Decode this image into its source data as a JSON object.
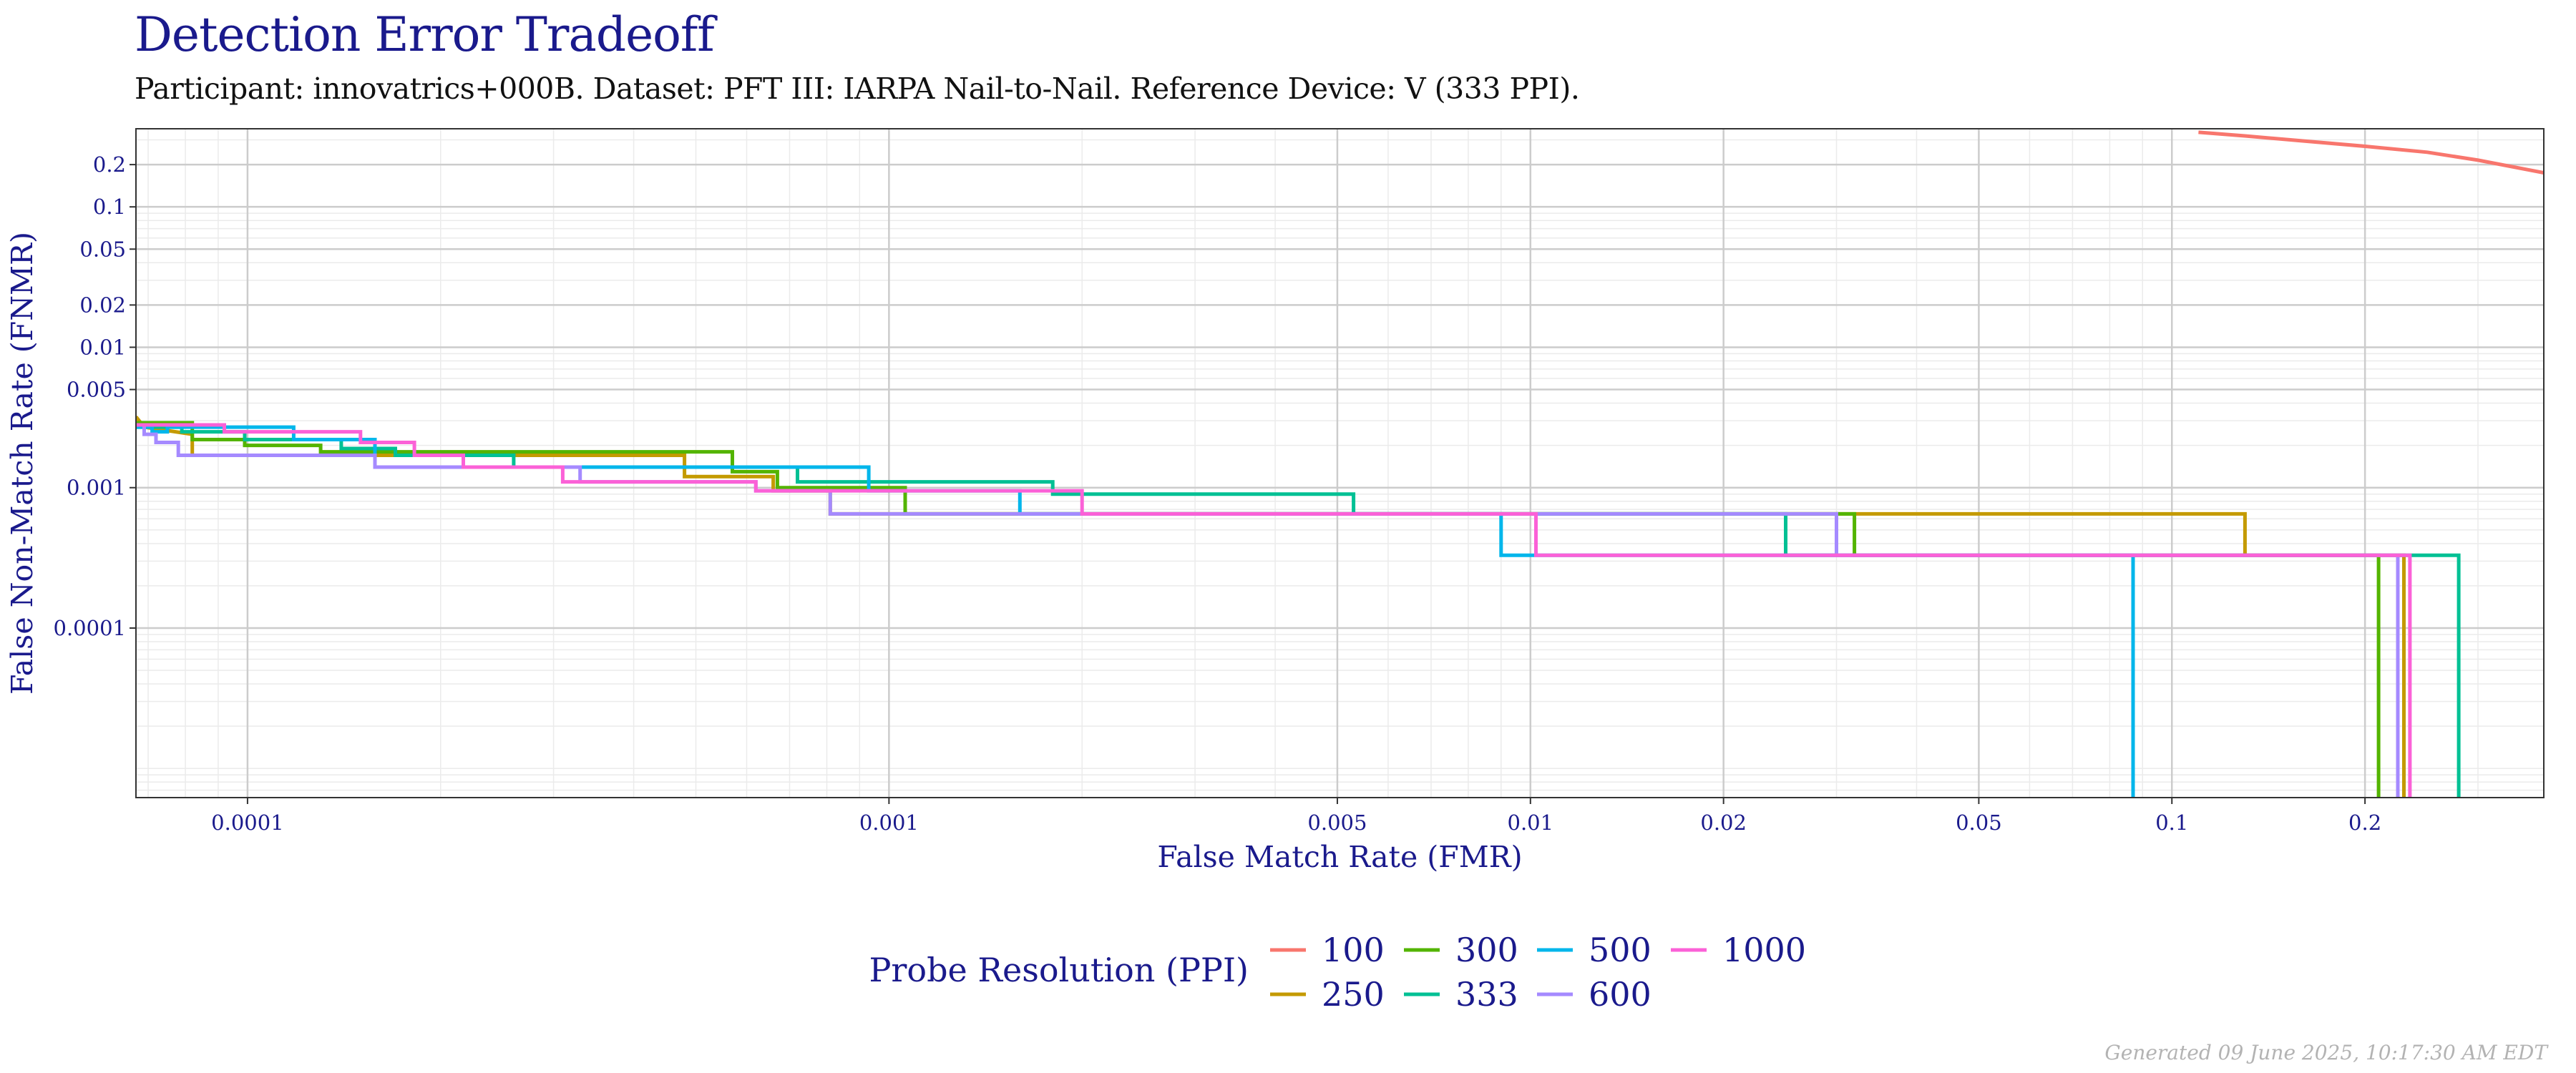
{
  "chart_data": {
    "type": "line",
    "step": true,
    "title": "Detection Error Tradeoff",
    "subtitle": "Participant: innovatrics+000B. Dataset: PFT III: IARPA Nail-to-Nail. Reference Device: V (333 PPI).",
    "xlabel": "False Match Rate (FMR)",
    "ylabel": "False Non-Match Rate (FNMR)",
    "xscale": "log",
    "yscale": "log",
    "xlim": [
      6.7e-05,
      0.38
    ],
    "ylim": [
      6.2e-06,
      0.36
    ],
    "xticks": [
      {
        "value": 0.0001,
        "label": "0.0001"
      },
      {
        "value": 0.001,
        "label": "0.001"
      },
      {
        "value": 0.005,
        "label": "0.005"
      },
      {
        "value": 0.01,
        "label": "0.01"
      },
      {
        "value": 0.02,
        "label": "0.02"
      },
      {
        "value": 0.05,
        "label": "0.05"
      },
      {
        "value": 0.1,
        "label": "0.1"
      },
      {
        "value": 0.2,
        "label": "0.2"
      }
    ],
    "yticks": [
      {
        "value": 0.2,
        "label": "0.2"
      },
      {
        "value": 0.1,
        "label": "0.1"
      },
      {
        "value": 0.05,
        "label": "0.05"
      },
      {
        "value": 0.02,
        "label": "0.02"
      },
      {
        "value": 0.01,
        "label": "0.01"
      },
      {
        "value": 0.005,
        "label": "0.005"
      },
      {
        "value": 0.001,
        "label": "0.001"
      },
      {
        "value": 0.0001,
        "label": "0.0001"
      }
    ],
    "legend": {
      "title": "Probe Resolution (PPI)",
      "position": "bottom"
    },
    "series": [
      {
        "name": "100",
        "color": "#F8766D",
        "points": [
          [
            0.11,
            0.34
          ],
          [
            0.13,
            0.32
          ],
          [
            0.16,
            0.295
          ],
          [
            0.2,
            0.27
          ],
          [
            0.25,
            0.245
          ],
          [
            0.3,
            0.215
          ],
          [
            0.38,
            0.175
          ]
        ]
      },
      {
        "name": "250",
        "color": "#C49A00",
        "points": [
          [
            6.7e-05,
            0.0032
          ],
          [
            6.9e-05,
            0.0027
          ],
          [
            8.2e-05,
            0.0024
          ],
          [
            8.2e-05,
            0.0017
          ],
          [
            0.00048,
            0.0017
          ],
          [
            0.00048,
            0.0012
          ],
          [
            0.00066,
            0.0012
          ],
          [
            0.00066,
            0.00095
          ],
          [
            0.00081,
            0.00095
          ],
          [
            0.00081,
            0.00065
          ],
          [
            0.031,
            0.00065
          ],
          [
            0.031,
            0.00065
          ],
          [
            0.13,
            0.00065
          ],
          [
            0.13,
            0.00033
          ],
          [
            0.23,
            0.00033
          ],
          [
            0.23,
            6.2e-06
          ]
        ]
      },
      {
        "name": "300",
        "color": "#53B400",
        "points": [
          [
            6.7e-05,
            0.0029
          ],
          [
            8.2e-05,
            0.0029
          ],
          [
            8.2e-05,
            0.0022
          ],
          [
            9.9e-05,
            0.0022
          ],
          [
            9.9e-05,
            0.002
          ],
          [
            0.00013,
            0.002
          ],
          [
            0.00013,
            0.0018
          ],
          [
            0.00057,
            0.0018
          ],
          [
            0.00057,
            0.0013
          ],
          [
            0.00067,
            0.0013
          ],
          [
            0.00067,
            0.001
          ],
          [
            0.00106,
            0.001
          ],
          [
            0.00106,
            0.00065
          ],
          [
            0.032,
            0.00065
          ],
          [
            0.032,
            0.00033
          ],
          [
            0.21,
            0.00033
          ],
          [
            0.21,
            6.2e-06
          ]
        ]
      },
      {
        "name": "333",
        "color": "#00C094",
        "points": [
          [
            6.7e-05,
            0.0027
          ],
          [
            7.9e-05,
            0.0027
          ],
          [
            7.9e-05,
            0.0025
          ],
          [
            9.9e-05,
            0.0025
          ],
          [
            9.9e-05,
            0.0022
          ],
          [
            0.00014,
            0.0022
          ],
          [
            0.00014,
            0.0019
          ],
          [
            0.00017,
            0.0019
          ],
          [
            0.00017,
            0.0017
          ],
          [
            0.00026,
            0.0017
          ],
          [
            0.00026,
            0.0014
          ],
          [
            0.00072,
            0.0014
          ],
          [
            0.00072,
            0.0011
          ],
          [
            0.0018,
            0.0011
          ],
          [
            0.0018,
            0.0009
          ],
          [
            0.0053,
            0.0009
          ],
          [
            0.0053,
            0.00065
          ],
          [
            0.025,
            0.00065
          ],
          [
            0.025,
            0.00033
          ],
          [
            0.28,
            0.00033
          ],
          [
            0.28,
            6.2e-06
          ]
        ]
      },
      {
        "name": "500",
        "color": "#00B6EB",
        "points": [
          [
            6.7e-05,
            0.0027
          ],
          [
            7.1e-05,
            0.0027
          ],
          [
            7.1e-05,
            0.0025
          ],
          [
            7.5e-05,
            0.0025
          ],
          [
            7.5e-05,
            0.0027
          ],
          [
            0.000118,
            0.0027
          ],
          [
            0.000118,
            0.0022
          ],
          [
            0.000158,
            0.0022
          ],
          [
            0.000158,
            0.0014
          ],
          [
            0.00093,
            0.0014
          ],
          [
            0.00093,
            0.00095
          ],
          [
            0.0016,
            0.00095
          ],
          [
            0.0016,
            0.00065
          ],
          [
            0.009,
            0.00065
          ],
          [
            0.009,
            0.00033
          ],
          [
            0.087,
            0.00033
          ],
          [
            0.087,
            6.2e-06
          ]
        ]
      },
      {
        "name": "600",
        "color": "#A58AFF",
        "points": [
          [
            6.7e-05,
            0.0028
          ],
          [
            6.9e-05,
            0.0028
          ],
          [
            6.9e-05,
            0.0024
          ],
          [
            7.2e-05,
            0.0024
          ],
          [
            7.2e-05,
            0.0021
          ],
          [
            7.8e-05,
            0.0021
          ],
          [
            7.8e-05,
            0.0017
          ],
          [
            0.000158,
            0.0017
          ],
          [
            0.000158,
            0.0014
          ],
          [
            0.00033,
            0.0014
          ],
          [
            0.00033,
            0.0011
          ],
          [
            0.00062,
            0.0011
          ],
          [
            0.00062,
            0.00095
          ],
          [
            0.00081,
            0.00095
          ],
          [
            0.00081,
            0.00065
          ],
          [
            0.03,
            0.00065
          ],
          [
            0.03,
            0.00033
          ],
          [
            0.225,
            0.00033
          ],
          [
            0.225,
            6.2e-06
          ]
        ]
      },
      {
        "name": "1000",
        "color": "#FB61D7",
        "points": [
          [
            6.7e-05,
            0.0028
          ],
          [
            9.2e-05,
            0.0028
          ],
          [
            9.2e-05,
            0.0025
          ],
          [
            0.00015,
            0.0025
          ],
          [
            0.00015,
            0.0021
          ],
          [
            0.000182,
            0.0021
          ],
          [
            0.000182,
            0.0017
          ],
          [
            0.000217,
            0.0017
          ],
          [
            0.000217,
            0.0014
          ],
          [
            0.00031,
            0.0014
          ],
          [
            0.00031,
            0.0011
          ],
          [
            0.00062,
            0.0011
          ],
          [
            0.00062,
            0.00095
          ],
          [
            0.002,
            0.00095
          ],
          [
            0.002,
            0.00065
          ],
          [
            0.0102,
            0.00065
          ],
          [
            0.0102,
            0.00033
          ],
          [
            0.235,
            0.00033
          ],
          [
            0.235,
            6.2e-06
          ]
        ]
      }
    ]
  },
  "footer": "Generated 09 June 2025, 10:17:30 AM EDT"
}
